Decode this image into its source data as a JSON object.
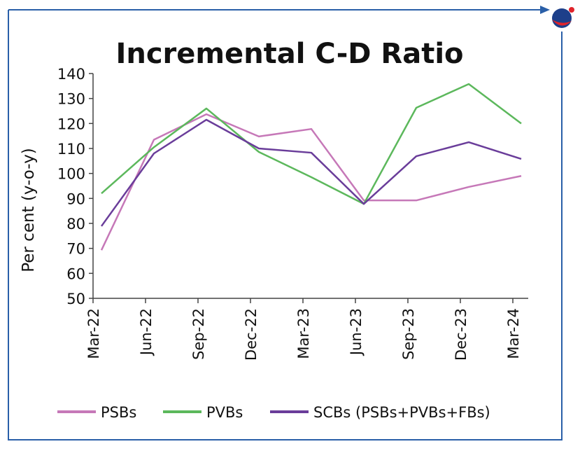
{
  "chart_data": {
    "type": "line",
    "title": "Incremental C-D Ratio",
    "y_label": "Per cent (y-o-y)",
    "categories": [
      "Mar-22",
      "Jun-22",
      "Sep-22",
      "Dec-22",
      "Mar-23",
      "Jun-23",
      "Sep-23",
      "Dec-23",
      "Mar-24"
    ],
    "series": [
      {
        "name": "PSBs",
        "color": "#c678b8",
        "values": [
          69.3,
          113.5,
          123.7,
          114.8,
          117.8,
          89.2,
          89.2,
          94.6,
          99
        ]
      },
      {
        "name": "PVBs",
        "color": "#5cb85c",
        "values": [
          92,
          110.5,
          126,
          108.6,
          98.5,
          87.8,
          126.3,
          135.8,
          120
        ]
      },
      {
        "name": "SCBs (PSBs+PVBs+FBs)",
        "color": "#6a3d9a",
        "values": [
          78.9,
          108,
          121.5,
          110,
          108.3,
          87.8,
          106.9,
          112.5,
          105.8
        ]
      }
    ],
    "ylim": [
      50,
      140
    ],
    "yticks": [
      50,
      60,
      70,
      80,
      90,
      100,
      110,
      120,
      130,
      140
    ],
    "grid": false
  }
}
